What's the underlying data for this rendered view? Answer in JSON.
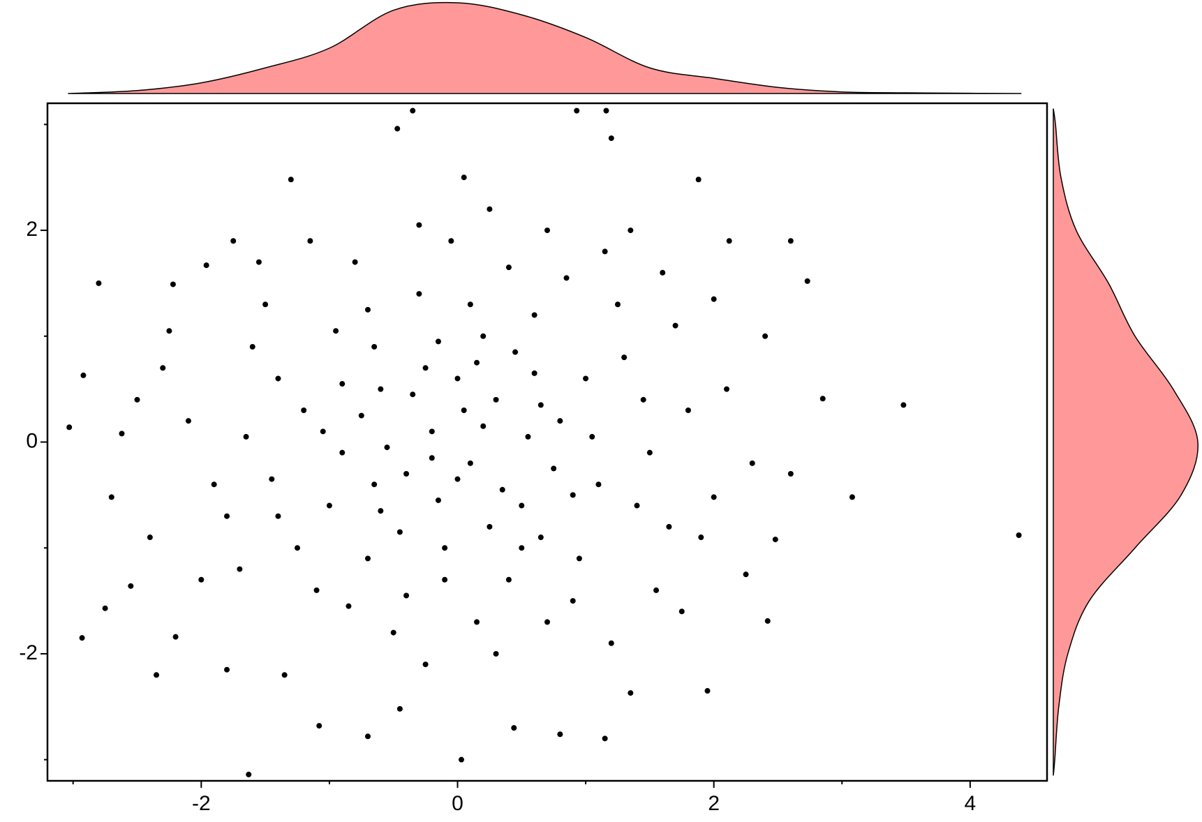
{
  "chart_data": {
    "type": "scatter",
    "xlim": [
      -3.2,
      4.6
    ],
    "ylim": [
      -3.2,
      3.2
    ],
    "xticks": [
      -2,
      0,
      2,
      4
    ],
    "yticks": [
      -2,
      0,
      2
    ],
    "x_minor_ticks": [
      -3,
      -1,
      1,
      3
    ],
    "y_minor_ticks": [
      -3,
      -1,
      1,
      3
    ],
    "color": "#000000",
    "x": [
      4.38,
      3.48,
      3.08,
      2.85,
      -3.03,
      -2.92,
      -2.93,
      -2.8,
      -1.63,
      0.03,
      -0.35,
      0.93,
      1.16,
      1.2,
      -0.47,
      1.88,
      2.6,
      2.73,
      -1.3,
      -2.35,
      -2.7,
      -2.62,
      -2.55,
      -2.75,
      -2.2,
      -2.22,
      -1.96,
      -0.7,
      0.8,
      1.15,
      -1.08,
      2.0,
      2.42,
      2.48,
      2.12,
      0.44,
      -0.45,
      1.95,
      1.35,
      -1.8,
      -0.2,
      0.1,
      0.3,
      -0.4,
      0.5,
      -0.6,
      0.8,
      -0.9,
      0.2,
      -0.1,
      1.1,
      -1.2,
      0.6,
      -0.7,
      1.3,
      -1.4,
      0.0,
      0.4,
      -0.3,
      1.5,
      -1.6,
      0.9,
      -0.8,
      1.7,
      -1.9,
      0.15,
      -0.05,
      1.9,
      -2.1,
      0.7,
      -0.5,
      2.1,
      -1.1,
      1.2,
      -1.5,
      0.25,
      -0.25,
      1.6,
      -1.7,
      0.55,
      -0.55,
      0.35,
      -0.35,
      0.05,
      -0.15,
      0.75,
      -0.75,
      1.0,
      -1.0,
      0.45,
      -0.45,
      0.65,
      -0.65,
      1.4,
      -1.4,
      0.1,
      -0.1,
      1.25,
      -1.25,
      2.3,
      -2.3,
      0.95,
      -0.95,
      1.8,
      -1.8,
      0.3,
      -0.3,
      2.4,
      -2.4,
      1.55,
      -1.55,
      0.85,
      -0.85,
      0.2,
      -0.2,
      0.6,
      -0.6,
      1.05,
      -1.05,
      0.0,
      0.15,
      -0.15,
      0.5,
      1.65,
      -1.65,
      2.0,
      -2.0,
      0.7,
      -0.7,
      2.6,
      -2.5,
      1.35,
      -1.35,
      0.4,
      -0.4,
      0.9,
      -0.9,
      1.15,
      -1.15,
      2.25,
      -2.25,
      0.25,
      -0.25,
      1.75,
      -1.75,
      0.05,
      1.45,
      -1.45,
      0.65,
      -0.65
    ],
    "y": [
      -0.88,
      0.35,
      -0.52,
      0.41,
      0.14,
      0.63,
      -1.85,
      1.5,
      -3.14,
      -3.0,
      3.13,
      3.13,
      3.13,
      2.87,
      2.96,
      2.48,
      1.9,
      1.52,
      2.48,
      -2.2,
      -0.52,
      0.08,
      -1.36,
      -1.57,
      -1.84,
      1.49,
      1.67,
      -2.78,
      -2.76,
      -2.8,
      -2.68,
      -0.52,
      -1.69,
      -0.92,
      1.9,
      -2.7,
      -2.52,
      -2.35,
      -2.37,
      -2.15,
      0.1,
      -0.2,
      0.4,
      -0.3,
      -0.6,
      0.5,
      0.2,
      -0.1,
      1.0,
      -1.0,
      -0.4,
      0.3,
      1.2,
      -1.1,
      0.8,
      -0.7,
      0.6,
      -1.3,
      1.4,
      -0.1,
      0.9,
      -1.5,
      1.7,
      1.1,
      -0.4,
      -1.7,
      1.9,
      -0.9,
      0.2,
      2.0,
      -1.8,
      0.5,
      -1.4,
      -1.9,
      1.3,
      2.2,
      -2.1,
      1.6,
      -1.2,
      0.05,
      -0.05,
      -0.45,
      0.45,
      0.3,
      -0.55,
      -0.25,
      0.25,
      0.6,
      -0.6,
      0.85,
      -0.85,
      -0.9,
      0.9,
      -0.6,
      0.6,
      1.3,
      -1.3,
      1.3,
      -1.0,
      -0.2,
      0.7,
      -1.1,
      1.05,
      0.3,
      -0.7,
      -2.0,
      2.05,
      1.0,
      -0.9,
      -1.4,
      1.7,
      1.55,
      -1.55,
      0.15,
      -0.15,
      0.65,
      -0.65,
      0.05,
      0.1,
      -0.35,
      0.75,
      0.95,
      -1.0,
      -0.8,
      0.05,
      1.35,
      -1.3,
      -1.7,
      1.25,
      -0.3,
      0.4,
      2.0,
      -2.2,
      1.65,
      -1.45,
      -0.5,
      0.55,
      1.8,
      1.9,
      -1.25,
      1.05,
      -0.8,
      0.7,
      -1.6,
      1.9,
      2.5,
      0.4,
      -0.35,
      0.35,
      -0.4
    ],
    "marginal_x": {
      "color": "#ff9999",
      "x": [
        -3.04,
        -2.5,
        -2.0,
        -1.5,
        -1.0,
        -0.5,
        0.0,
        0.5,
        1.0,
        1.5,
        2.0,
        2.5,
        3.0,
        3.5,
        4.0,
        4.4
      ],
      "values": [
        0,
        0.013,
        0.047,
        0.113,
        0.2,
        0.367,
        0.4,
        0.347,
        0.247,
        0.113,
        0.067,
        0.027,
        0.007,
        0.003,
        0.001,
        0
      ]
    },
    "marginal_y": {
      "color": "#ff9999",
      "y": [
        3.15,
        3.0,
        2.5,
        2.0,
        1.5,
        1.0,
        0.5,
        0.0,
        -0.5,
        -1.0,
        -1.5,
        -2.0,
        -2.5,
        -3.0,
        -3.15
      ],
      "values": [
        0,
        0.006,
        0.021,
        0.063,
        0.152,
        0.225,
        0.33,
        0.398,
        0.352,
        0.225,
        0.099,
        0.04,
        0.015,
        0.004,
        0
      ]
    }
  }
}
